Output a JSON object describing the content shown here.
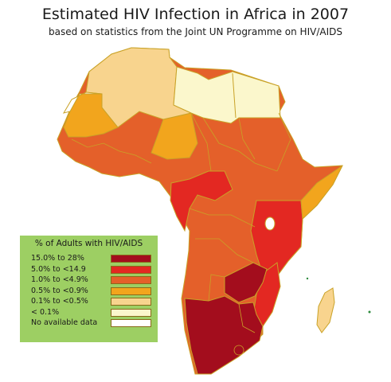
{
  "title": "Estimated HIV Infection in Africa in 2007",
  "subtitle": "based on statistics from the Joint UN Programme on HIV/AIDS",
  "legend": {
    "title": "% of Adults with HIV/AIDS",
    "items": [
      {
        "label": "15.0%  to   28%",
        "color": "#a30d1d"
      },
      {
        "label": "5.0% to <14.9",
        "color": "#e32822"
      },
      {
        "label": "1.0% to <4.9%",
        "color": "#e4602a"
      },
      {
        "label": "0.5% to <0.9%",
        "color": "#f2a51d"
      },
      {
        "label": "0.1% to <0.5%",
        "color": "#f8d48e"
      },
      {
        "label": "< 0.1%",
        "color": "#fbf7cc"
      },
      {
        "label": "No available data",
        "color": "#ffffff"
      }
    ]
  },
  "colors": {
    "band_15_28": "#a30d1d",
    "band_5_15": "#e32822",
    "band_1_5": "#e4602a",
    "band_05_1": "#f2a51d",
    "band_01_05": "#f8d48e",
    "band_lt01": "#fbf7cc",
    "no_data": "#ffffff",
    "legend_bg": "#9dcf63",
    "border": "#c9a227"
  }
}
